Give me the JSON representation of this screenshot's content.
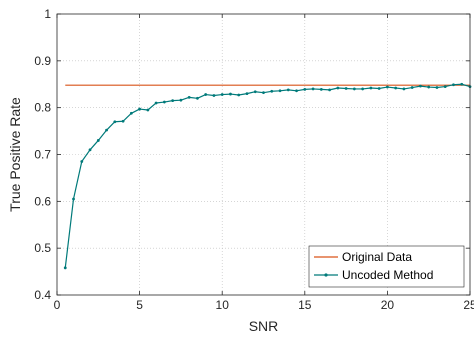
{
  "chart_data": {
    "type": "line",
    "title": "",
    "xlabel": "SNR",
    "ylabel": "True Positive Rate",
    "xlim": [
      0,
      25
    ],
    "ylim": [
      0.4,
      1
    ],
    "xticks": [
      0,
      5,
      10,
      15,
      20,
      25
    ],
    "yticks": [
      0.4,
      0.5,
      0.6,
      0.7,
      0.8,
      0.9,
      1
    ],
    "xtick_labels": [
      "0",
      "5",
      "10",
      "15",
      "20",
      "25"
    ],
    "ytick_labels": [
      "0.4",
      "0.5",
      "0.6",
      "0.7",
      "0.8",
      "0.9",
      "1"
    ],
    "grid": true,
    "legend_position": "bottom-right",
    "series": [
      {
        "name": "Original Data",
        "color": "#d95319",
        "marker": "none",
        "x": [
          0.5,
          25
        ],
        "y": [
          0.848,
          0.848
        ]
      },
      {
        "name": "Uncoded Method",
        "color": "#007a7a",
        "marker": "dot",
        "x": [
          0.5,
          1.0,
          1.5,
          2.0,
          2.5,
          3.0,
          3.5,
          4.0,
          4.5,
          5.0,
          5.5,
          6.0,
          6.5,
          7.0,
          7.5,
          8.0,
          8.5,
          9.0,
          9.5,
          10.0,
          10.5,
          11.0,
          11.5,
          12.0,
          12.5,
          13.0,
          13.5,
          14.0,
          14.5,
          15.0,
          15.5,
          16.0,
          16.5,
          17.0,
          17.5,
          18.0,
          18.5,
          19.0,
          19.5,
          20.0,
          20.5,
          21.0,
          21.5,
          22.0,
          22.5,
          23.0,
          23.5,
          24.0,
          24.5,
          25.0
        ],
        "y": [
          0.458,
          0.605,
          0.685,
          0.71,
          0.73,
          0.752,
          0.77,
          0.771,
          0.788,
          0.797,
          0.795,
          0.81,
          0.812,
          0.815,
          0.816,
          0.822,
          0.82,
          0.828,
          0.826,
          0.828,
          0.829,
          0.827,
          0.83,
          0.834,
          0.832,
          0.835,
          0.836,
          0.838,
          0.836,
          0.839,
          0.84,
          0.839,
          0.838,
          0.842,
          0.841,
          0.84,
          0.84,
          0.842,
          0.841,
          0.844,
          0.842,
          0.84,
          0.843,
          0.846,
          0.844,
          0.843,
          0.845,
          0.849,
          0.85,
          0.845
        ]
      }
    ]
  }
}
